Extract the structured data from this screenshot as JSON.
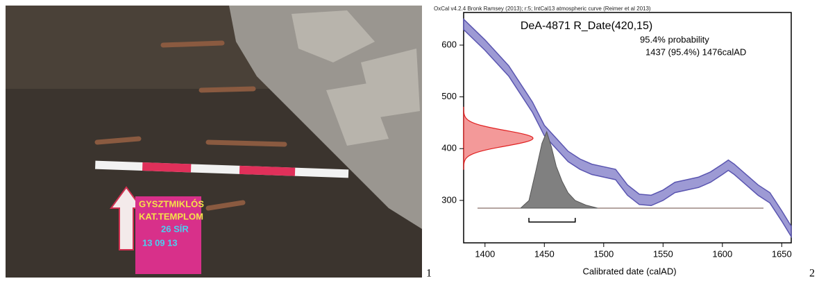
{
  "photo": {
    "sign": [
      "GYSZTMIKLÓS",
      "KAT.TEMPLOM",
      "26 SÍR",
      "13 09 13"
    ]
  },
  "figure_labels": [
    "1",
    "2"
  ],
  "chart_data": {
    "type": "calibration",
    "header": "OxCal v4.2.4 Bronk Ramsey (2013); r:5; IntCal13 atmospheric curve (Reimer et al 2013)",
    "title": "DeA-4871 R_Date(420,15)",
    "probability_label": "95.4% probability",
    "range_label": "1437 (95.4%) 1476calAD",
    "xlabel": "Calibrated date (calAD)",
    "xlim": [
      1382,
      1658
    ],
    "xticks": [
      1400,
      1450,
      1500,
      1550,
      1600,
      1650
    ],
    "ylim": [
      218,
      663
    ],
    "yticks": [
      300,
      400,
      500,
      600
    ],
    "curve": {
      "color": "#5a55b0",
      "fill": "#8c88cc",
      "x": [
        1382,
        1400,
        1420,
        1440,
        1450,
        1460,
        1470,
        1480,
        1490,
        1500,
        1510,
        1520,
        1530,
        1540,
        1550,
        1560,
        1570,
        1580,
        1590,
        1600,
        1605,
        1610,
        1620,
        1630,
        1640,
        1650,
        1658
      ],
      "values": [
        640,
        600,
        550,
        480,
        435,
        410,
        385,
        370,
        360,
        355,
        350,
        320,
        302,
        300,
        310,
        325,
        330,
        335,
        345,
        360,
        368,
        360,
        340,
        320,
        305,
        270,
        240
      ],
      "errors": [
        10,
        10,
        10,
        10,
        10,
        10,
        10,
        10,
        10,
        10,
        10,
        10,
        10,
        10,
        10,
        10,
        10,
        10,
        10,
        10,
        10,
        10,
        10,
        10,
        10,
        10,
        10
      ]
    },
    "measurement": {
      "mean": 420,
      "sd": 15,
      "color": "#e02020",
      "fill": "#f08080"
    },
    "posterior": {
      "color": "#555",
      "fill": "#808080",
      "x": [
        1430,
        1437,
        1443,
        1448,
        1452,
        1456,
        1460,
        1465,
        1470,
        1476,
        1485,
        1495
      ],
      "density": [
        0,
        0.1,
        0.5,
        0.85,
        1,
        0.8,
        0.55,
        0.35,
        0.2,
        0.1,
        0.04,
        0
      ]
    },
    "range": [
      1437,
      1476
    ]
  }
}
